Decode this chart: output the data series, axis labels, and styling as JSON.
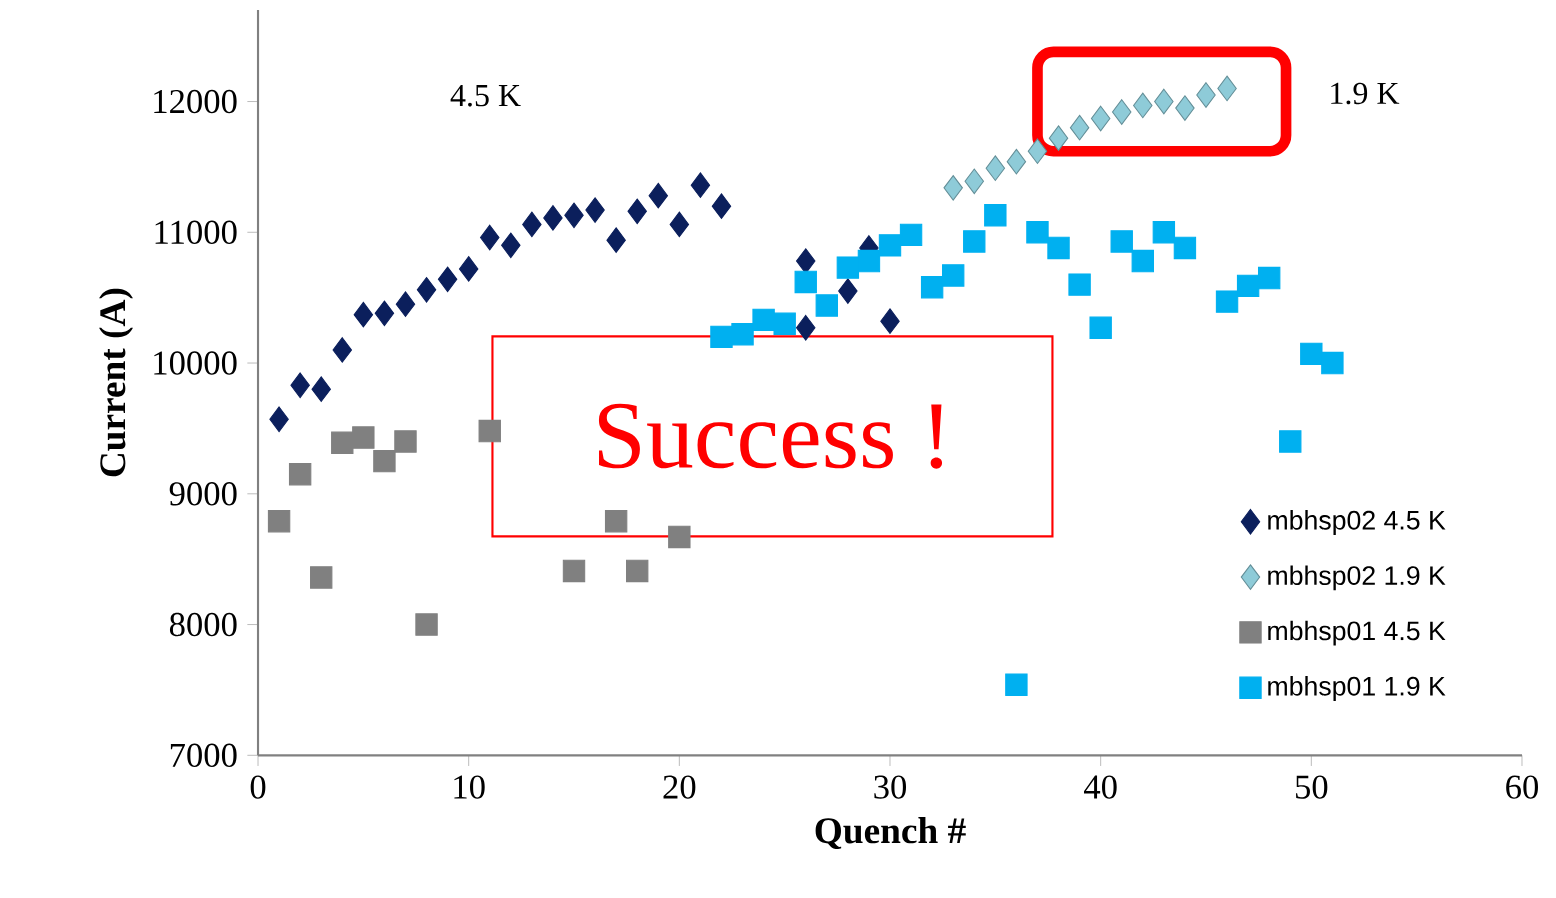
{
  "chart_data": {
    "type": "scatter",
    "xlabel": "Quench #",
    "ylabel": "Current (A)",
    "xlim": [
      0,
      60
    ],
    "ylim": [
      7000,
      12700
    ],
    "xticks": [
      0,
      10,
      20,
      30,
      40,
      50,
      60
    ],
    "yticks": [
      7000,
      8000,
      9000,
      10000,
      11000,
      12000
    ],
    "grid": false,
    "legend": "bottom right",
    "annotations": [
      "4.5 K",
      "1.9 K",
      "Success !"
    ],
    "series": [
      {
        "name": "mbhsp02 4.5 K",
        "color": "#0b1f5c",
        "marker": "diamond",
        "x": [
          1,
          2,
          3,
          4,
          5,
          6,
          7,
          8,
          9,
          10,
          11,
          12,
          13,
          14,
          15,
          16,
          17,
          18,
          19,
          20,
          21,
          22,
          26,
          26,
          28,
          29,
          30
        ],
        "values": [
          9570,
          9830,
          9800,
          10100,
          10370,
          10380,
          10450,
          10560,
          10640,
          10720,
          10960,
          10900,
          11060,
          11110,
          11130,
          11170,
          10940,
          11160,
          11280,
          11060,
          11360,
          11200,
          10780,
          10270,
          10550,
          10880,
          10320
        ]
      },
      {
        "name": "mbhsp02 1.9 K",
        "color": "#8ecbd8",
        "marker": "diamond",
        "x": [
          33,
          34,
          35,
          36,
          37,
          38,
          39,
          40,
          41,
          42,
          43,
          44,
          45,
          46
        ],
        "values": [
          11340,
          11390,
          11490,
          11540,
          11620,
          11720,
          11800,
          11870,
          11920,
          11970,
          12000,
          11950,
          12050,
          12100
        ]
      },
      {
        "name": "mbhsp01 4.5 K",
        "color": "#808080",
        "marker": "square",
        "x": [
          1,
          2,
          3,
          4,
          5,
          6,
          7,
          8,
          11,
          15,
          17,
          18,
          20
        ],
        "values": [
          8790,
          9150,
          8360,
          9390,
          9430,
          9250,
          9400,
          8000,
          9480,
          8410,
          8790,
          8410,
          8670
        ]
      },
      {
        "name": "mbhsp01 1.9 K",
        "color": "#00b0f0",
        "marker": "square",
        "x": [
          22,
          23,
          24,
          25,
          26,
          27,
          28,
          29,
          30,
          31,
          32,
          33,
          34,
          35,
          36,
          37,
          38,
          39,
          40,
          41,
          42,
          43,
          44,
          46,
          47,
          48,
          49,
          50,
          51
        ],
        "values": [
          10200,
          10220,
          10330,
          10300,
          10620,
          10440,
          10730,
          10780,
          10900,
          10980,
          10580,
          10670,
          10930,
          11130,
          7540,
          11000,
          10880,
          10600,
          10270,
          10930,
          10780,
          11000,
          10880,
          10470,
          10590,
          10650,
          9400,
          10070,
          10000
        ]
      }
    ]
  }
}
